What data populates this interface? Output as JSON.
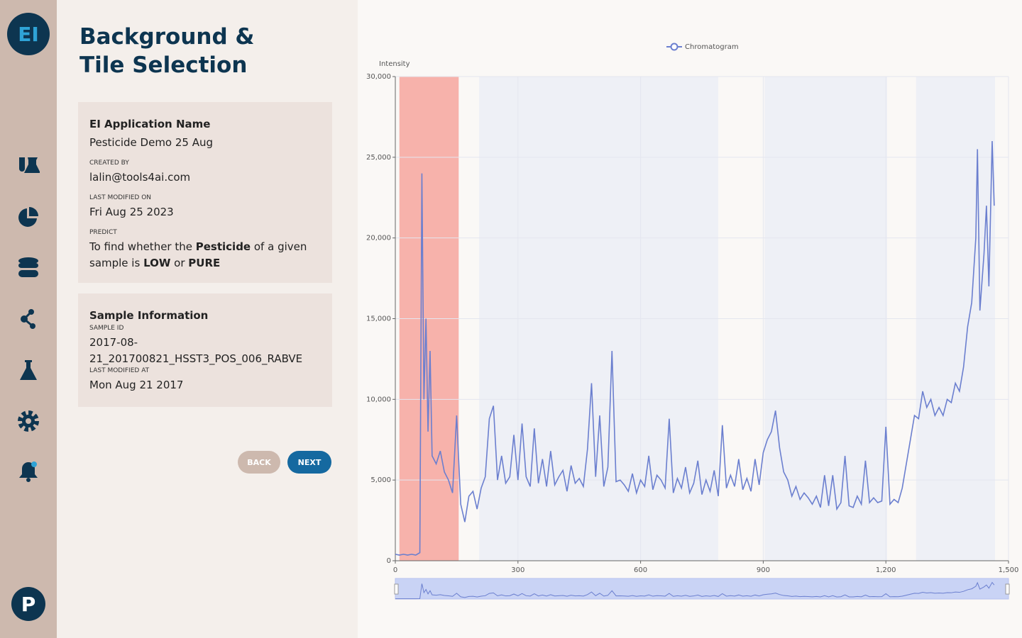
{
  "sidebar": {
    "logo": "EI",
    "avatar": "P"
  },
  "panel": {
    "title_lines": [
      "Background &",
      "Tile Selection"
    ],
    "app_card": {
      "heading": "EI Application Name",
      "app_name": "Pesticide Demo 25 Aug",
      "created_by_label": "CREATED BY",
      "created_by": "lalin@tools4ai.com",
      "modified_label": "LAST MODIFIED ON",
      "modified": "Fri Aug 25 2023",
      "predict_label": "PREDICT",
      "predict_segments": [
        {
          "text": "To find whether the ",
          "bold": false
        },
        {
          "text": "Pesticide",
          "bold": true
        },
        {
          "text": " of a given sample is ",
          "bold": false
        },
        {
          "text": "LOW",
          "bold": true
        },
        {
          "text": " or ",
          "bold": false
        },
        {
          "text": "PURE",
          "bold": true
        }
      ]
    },
    "sample_card": {
      "heading": "Sample Information",
      "sample_id_label": "SAMPLE ID",
      "sample_id_lines": [
        "2017-08-",
        "21_201700821_HSST3_POS_006_RABVE"
      ],
      "modified_label": "LAST MODIFIED AT",
      "modified": "Mon Aug 21 2017"
    },
    "buttons": {
      "back": "BACK",
      "next": "NEXT"
    }
  },
  "chart_data": {
    "type": "line",
    "y_label": "Intensity",
    "xlim": [
      0,
      1500
    ],
    "ylim": [
      0,
      30000
    ],
    "xticks": [
      0,
      300,
      600,
      900,
      {
        "value": 1200,
        "label": "1,200"
      },
      {
        "value": 1500,
        "label": "1,500"
      }
    ],
    "yticks": [
      0,
      {
        "value": 5000,
        "label": "5,000"
      },
      {
        "value": 10000,
        "label": "10,000"
      },
      {
        "value": 15000,
        "label": "15,000"
      },
      {
        "value": 20000,
        "label": "20,000"
      },
      {
        "value": 25000,
        "label": "25,000"
      },
      {
        "value": 30000,
        "label": "30,000"
      }
    ],
    "grid": true,
    "legend": "top",
    "regions": [
      {
        "start": 10,
        "end": 155,
        "color": "#f7b2ab"
      },
      {
        "start": 205,
        "end": 790,
        "color": "#eef0f6"
      },
      {
        "start": 903,
        "end": 1203,
        "color": "#eef0f6"
      },
      {
        "start": 1274,
        "end": 1467,
        "color": "#eef0f6"
      }
    ],
    "x": [
      0,
      10,
      20,
      30,
      40,
      50,
      60,
      65,
      70,
      75,
      80,
      85,
      90,
      100,
      110,
      120,
      130,
      140,
      150,
      160,
      170,
      180,
      190,
      200,
      210,
      220,
      230,
      240,
      250,
      260,
      270,
      280,
      290,
      300,
      310,
      320,
      330,
      340,
      350,
      360,
      370,
      380,
      390,
      400,
      410,
      420,
      430,
      440,
      450,
      460,
      470,
      480,
      490,
      500,
      510,
      520,
      530,
      540,
      550,
      560,
      570,
      580,
      590,
      600,
      610,
      620,
      630,
      640,
      650,
      660,
      670,
      680,
      690,
      700,
      710,
      720,
      730,
      740,
      750,
      760,
      770,
      780,
      790,
      800,
      810,
      820,
      830,
      840,
      850,
      860,
      870,
      880,
      890,
      900,
      910,
      920,
      930,
      940,
      950,
      960,
      970,
      980,
      990,
      1000,
      1010,
      1020,
      1030,
      1040,
      1050,
      1060,
      1070,
      1080,
      1090,
      1100,
      1110,
      1120,
      1130,
      1140,
      1150,
      1160,
      1170,
      1180,
      1190,
      1200,
      1210,
      1220,
      1230,
      1240,
      1250,
      1260,
      1270,
      1280,
      1290,
      1300,
      1310,
      1320,
      1330,
      1340,
      1350,
      1360,
      1370,
      1380,
      1390,
      1400,
      1410,
      1420,
      1424,
      1430,
      1440,
      1446,
      1452,
      1460,
      1465
    ],
    "series": [
      {
        "name": "Chromatogram",
        "color": "#6b7fcf",
        "values": [
          400,
          350,
          400,
          350,
          400,
          350,
          500,
          24000,
          10000,
          15000,
          8000,
          13000,
          6500,
          6000,
          6800,
          5500,
          5000,
          4200,
          9000,
          3500,
          2400,
          4000,
          4300,
          3200,
          4500,
          5200,
          8800,
          9600,
          5000,
          6500,
          4800,
          5200,
          7800,
          5000,
          8500,
          5200,
          4600,
          8200,
          4800,
          6300,
          4600,
          6800,
          4700,
          5200,
          5600,
          4300,
          5900,
          4800,
          5100,
          4600,
          6900,
          11000,
          5200,
          9000,
          4600,
          5800,
          13000,
          4900,
          5000,
          4700,
          4300,
          5400,
          4200,
          5000,
          4600,
          6500,
          4400,
          5300,
          5000,
          4500,
          8800,
          4200,
          5100,
          4500,
          5800,
          4200,
          4800,
          6200,
          4100,
          5000,
          4300,
          5600,
          4000,
          8400,
          4500,
          5300,
          4600,
          6300,
          4400,
          5100,
          4300,
          6300,
          4700,
          6700,
          7500,
          8000,
          9300,
          7000,
          5500,
          5000,
          4000,
          4600,
          3800,
          4200,
          3900,
          3500,
          4000,
          3300,
          5300,
          3400,
          5300,
          3200,
          3600,
          6500,
          3400,
          3300,
          4000,
          3500,
          6200,
          3600,
          3900,
          3600,
          3700,
          8300,
          3500,
          3800,
          3600,
          4500,
          6000,
          7500,
          9000,
          8800,
          10500,
          9500,
          10000,
          9000,
          9500,
          9000,
          10000,
          9800,
          11000,
          10500,
          12000,
          14500,
          16000,
          20000,
          25500,
          15500,
          19000,
          22000,
          17000,
          26000,
          22000
        ]
      }
    ]
  }
}
